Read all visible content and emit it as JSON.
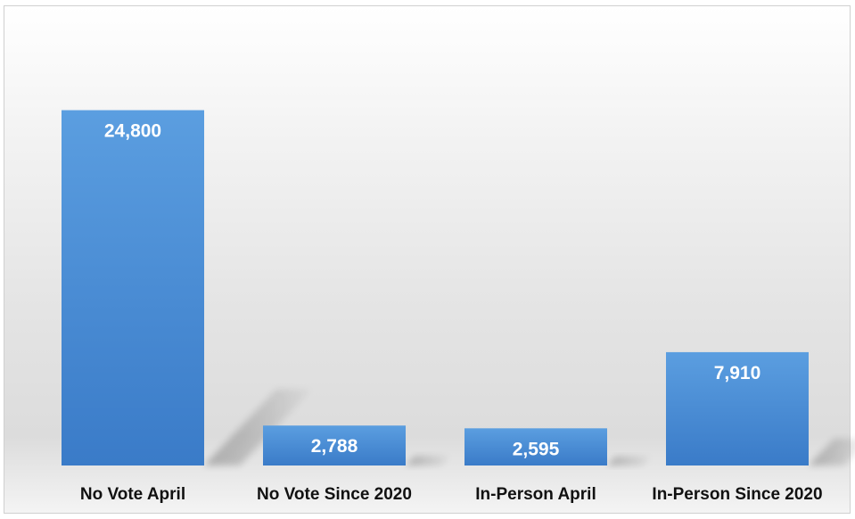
{
  "chart_data": {
    "type": "bar",
    "categories": [
      "No Vote April",
      "No Vote Since 2020",
      "In-Person April",
      "In-Person Since 2020"
    ],
    "values": [
      24800,
      2788,
      2595,
      7910
    ],
    "value_labels": [
      "24,800",
      "2,788",
      "2,595",
      "7,910"
    ],
    "ylim": [
      0,
      30000
    ],
    "grid": false,
    "legend": "none",
    "bar_color": "#4a8fd6",
    "bar_color_dark": "#3c7cc7"
  }
}
